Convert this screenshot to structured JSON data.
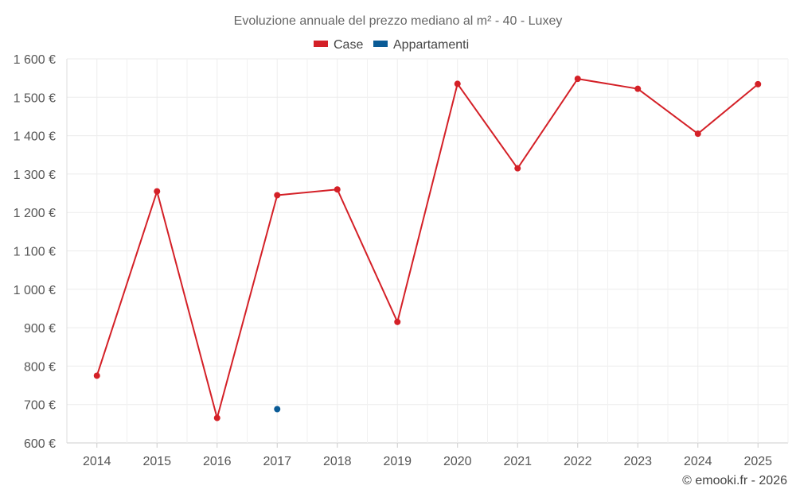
{
  "chart_data": {
    "type": "line",
    "title": "Evoluzione annuale del prezzo mediano al m² - 40 - Luxey",
    "categories": [
      "2014",
      "2015",
      "2016",
      "2017",
      "2018",
      "2019",
      "2020",
      "2021",
      "2022",
      "2023",
      "2024",
      "2025"
    ],
    "series": [
      {
        "name": "Case",
        "color": "#d42027",
        "values": [
          775,
          1255,
          665,
          1245,
          1260,
          915,
          1535,
          1315,
          1548,
          1522,
          1405,
          1534
        ]
      },
      {
        "name": "Appartamenti",
        "color": "#0a5b96",
        "values": [
          null,
          null,
          null,
          688,
          null,
          null,
          null,
          null,
          null,
          null,
          null,
          null
        ]
      }
    ],
    "ylim": [
      600,
      1600
    ],
    "yticks": [
      600,
      700,
      800,
      900,
      1000,
      1100,
      1200,
      1300,
      1400,
      1500,
      1600
    ],
    "ytick_labels": [
      "600 €",
      "700 €",
      "800 €",
      "900 €",
      "1 000 €",
      "1 100 €",
      "1 200 €",
      "1 300 €",
      "1 400 €",
      "1 500 €",
      "1 600 €"
    ],
    "grid": true,
    "legend_position": "top-center",
    "xlabel": "",
    "ylabel": ""
  },
  "credit": "© emooki.fr - 2026"
}
